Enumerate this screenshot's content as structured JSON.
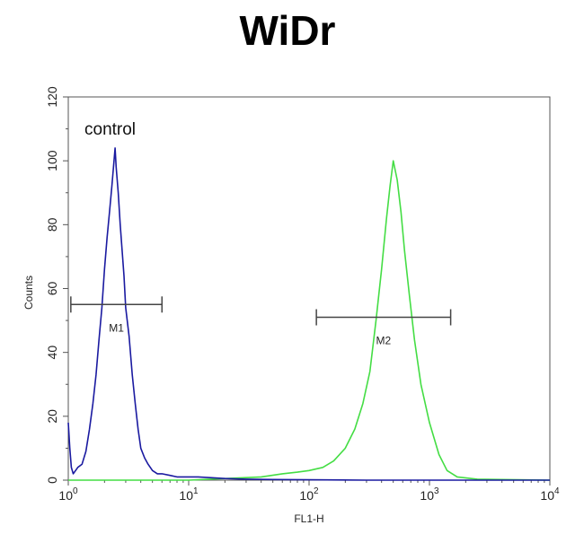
{
  "chart_data": {
    "type": "line",
    "title": "WiDr",
    "xlabel": "FL1-H",
    "ylabel": "Counts",
    "xscale": "log",
    "xlim": [
      1,
      10000
    ],
    "ylim": [
      0,
      120
    ],
    "yticks": [
      0,
      20,
      40,
      60,
      80,
      100,
      120
    ],
    "xticks": [
      {
        "value": 1,
        "base": "10",
        "exp": "0"
      },
      {
        "value": 10,
        "base": "10",
        "exp": "1"
      },
      {
        "value": 100,
        "base": "10",
        "exp": "2"
      },
      {
        "value": 1000,
        "base": "10",
        "exp": "3"
      },
      {
        "value": 10000,
        "base": "10",
        "exp": "4"
      }
    ],
    "annotation": "control",
    "series": [
      {
        "color": "#1a1aa0",
        "x": [
          1.0,
          1.03,
          1.06,
          1.1,
          1.15,
          1.2,
          1.3,
          1.4,
          1.5,
          1.6,
          1.7,
          1.8,
          1.9,
          2.0,
          2.1,
          2.2,
          2.3,
          2.4,
          2.45,
          2.5,
          2.6,
          2.7,
          2.8,
          2.9,
          3.0,
          3.2,
          3.4,
          3.6,
          3.8,
          4.0,
          4.3,
          4.6,
          5.0,
          5.5,
          6.0,
          7.0,
          8.0,
          10.0,
          12.0,
          15.0,
          20.0,
          30.0,
          50.0,
          100.0,
          300.0,
          10000.0
        ],
        "y": [
          18,
          10,
          4,
          2,
          3,
          4,
          5,
          9,
          16,
          24,
          33,
          44,
          54,
          66,
          76,
          84,
          92,
          100,
          104,
          98,
          90,
          80,
          72,
          64,
          54,
          45,
          33,
          24,
          16,
          10,
          7,
          5,
          3,
          2,
          2,
          1.5,
          1,
          1,
          1,
          0.8,
          0.5,
          0.3,
          0.2,
          0.1,
          0,
          0
        ]
      },
      {
        "color": "#44dd44",
        "x": [
          1.0,
          10.0,
          20.0,
          40.0,
          60.0,
          80.0,
          100.0,
          130.0,
          160.0,
          200.0,
          240.0,
          280.0,
          320.0,
          360.0,
          400.0,
          440.0,
          470.0,
          500.0,
          540.0,
          580.0,
          620.0,
          680.0,
          750.0,
          850.0,
          1000.0,
          1200.0,
          1400.0,
          1700.0,
          2500.0,
          10000.0
        ],
        "y": [
          0,
          0,
          0.5,
          1,
          2,
          2.5,
          3,
          4,
          6,
          10,
          16,
          24,
          34,
          50,
          66,
          82,
          92,
          100,
          94,
          84,
          72,
          58,
          44,
          30,
          18,
          8,
          3,
          1,
          0.3,
          0
        ]
      }
    ],
    "markers": [
      {
        "name": "M1",
        "x1": 1.05,
        "x2": 6.0,
        "y": 55
      },
      {
        "name": "M2",
        "x1": 115,
        "x2": 1500,
        "y": 51
      }
    ]
  }
}
